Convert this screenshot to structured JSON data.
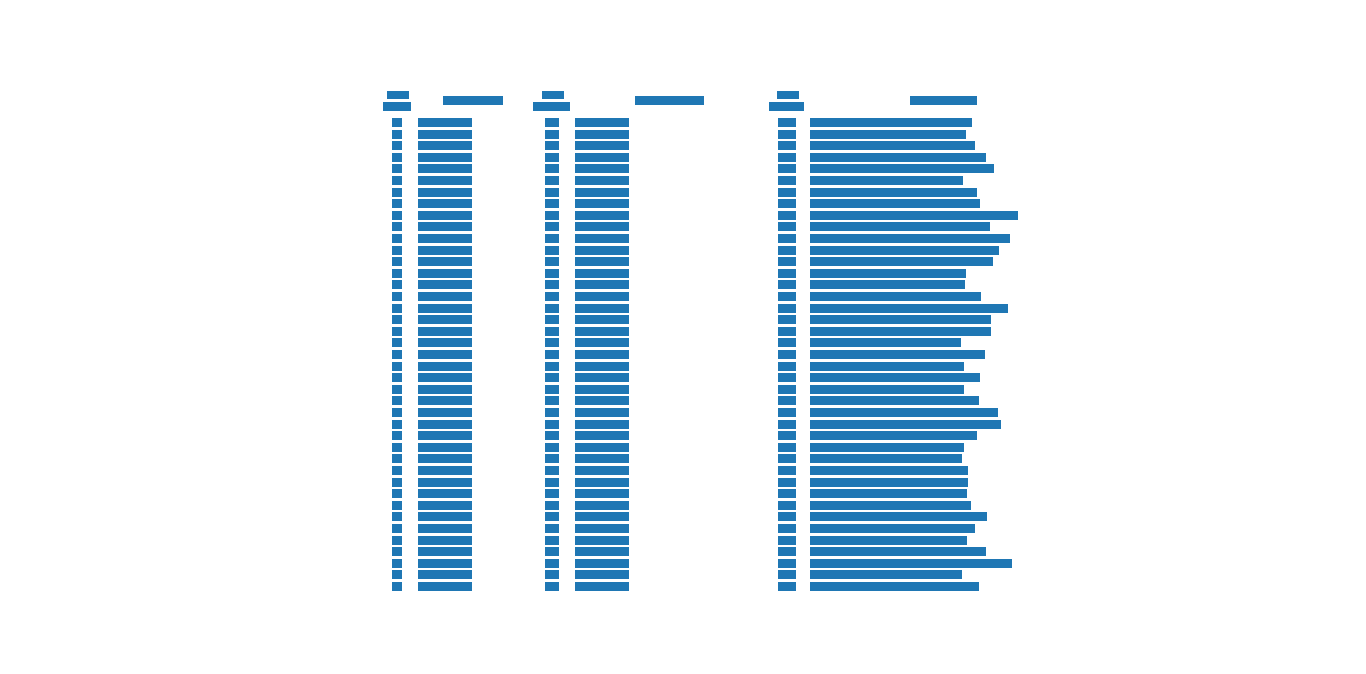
{
  "colors": {
    "redaction": "#1f77b4",
    "background": "#ffffff"
  }
}
